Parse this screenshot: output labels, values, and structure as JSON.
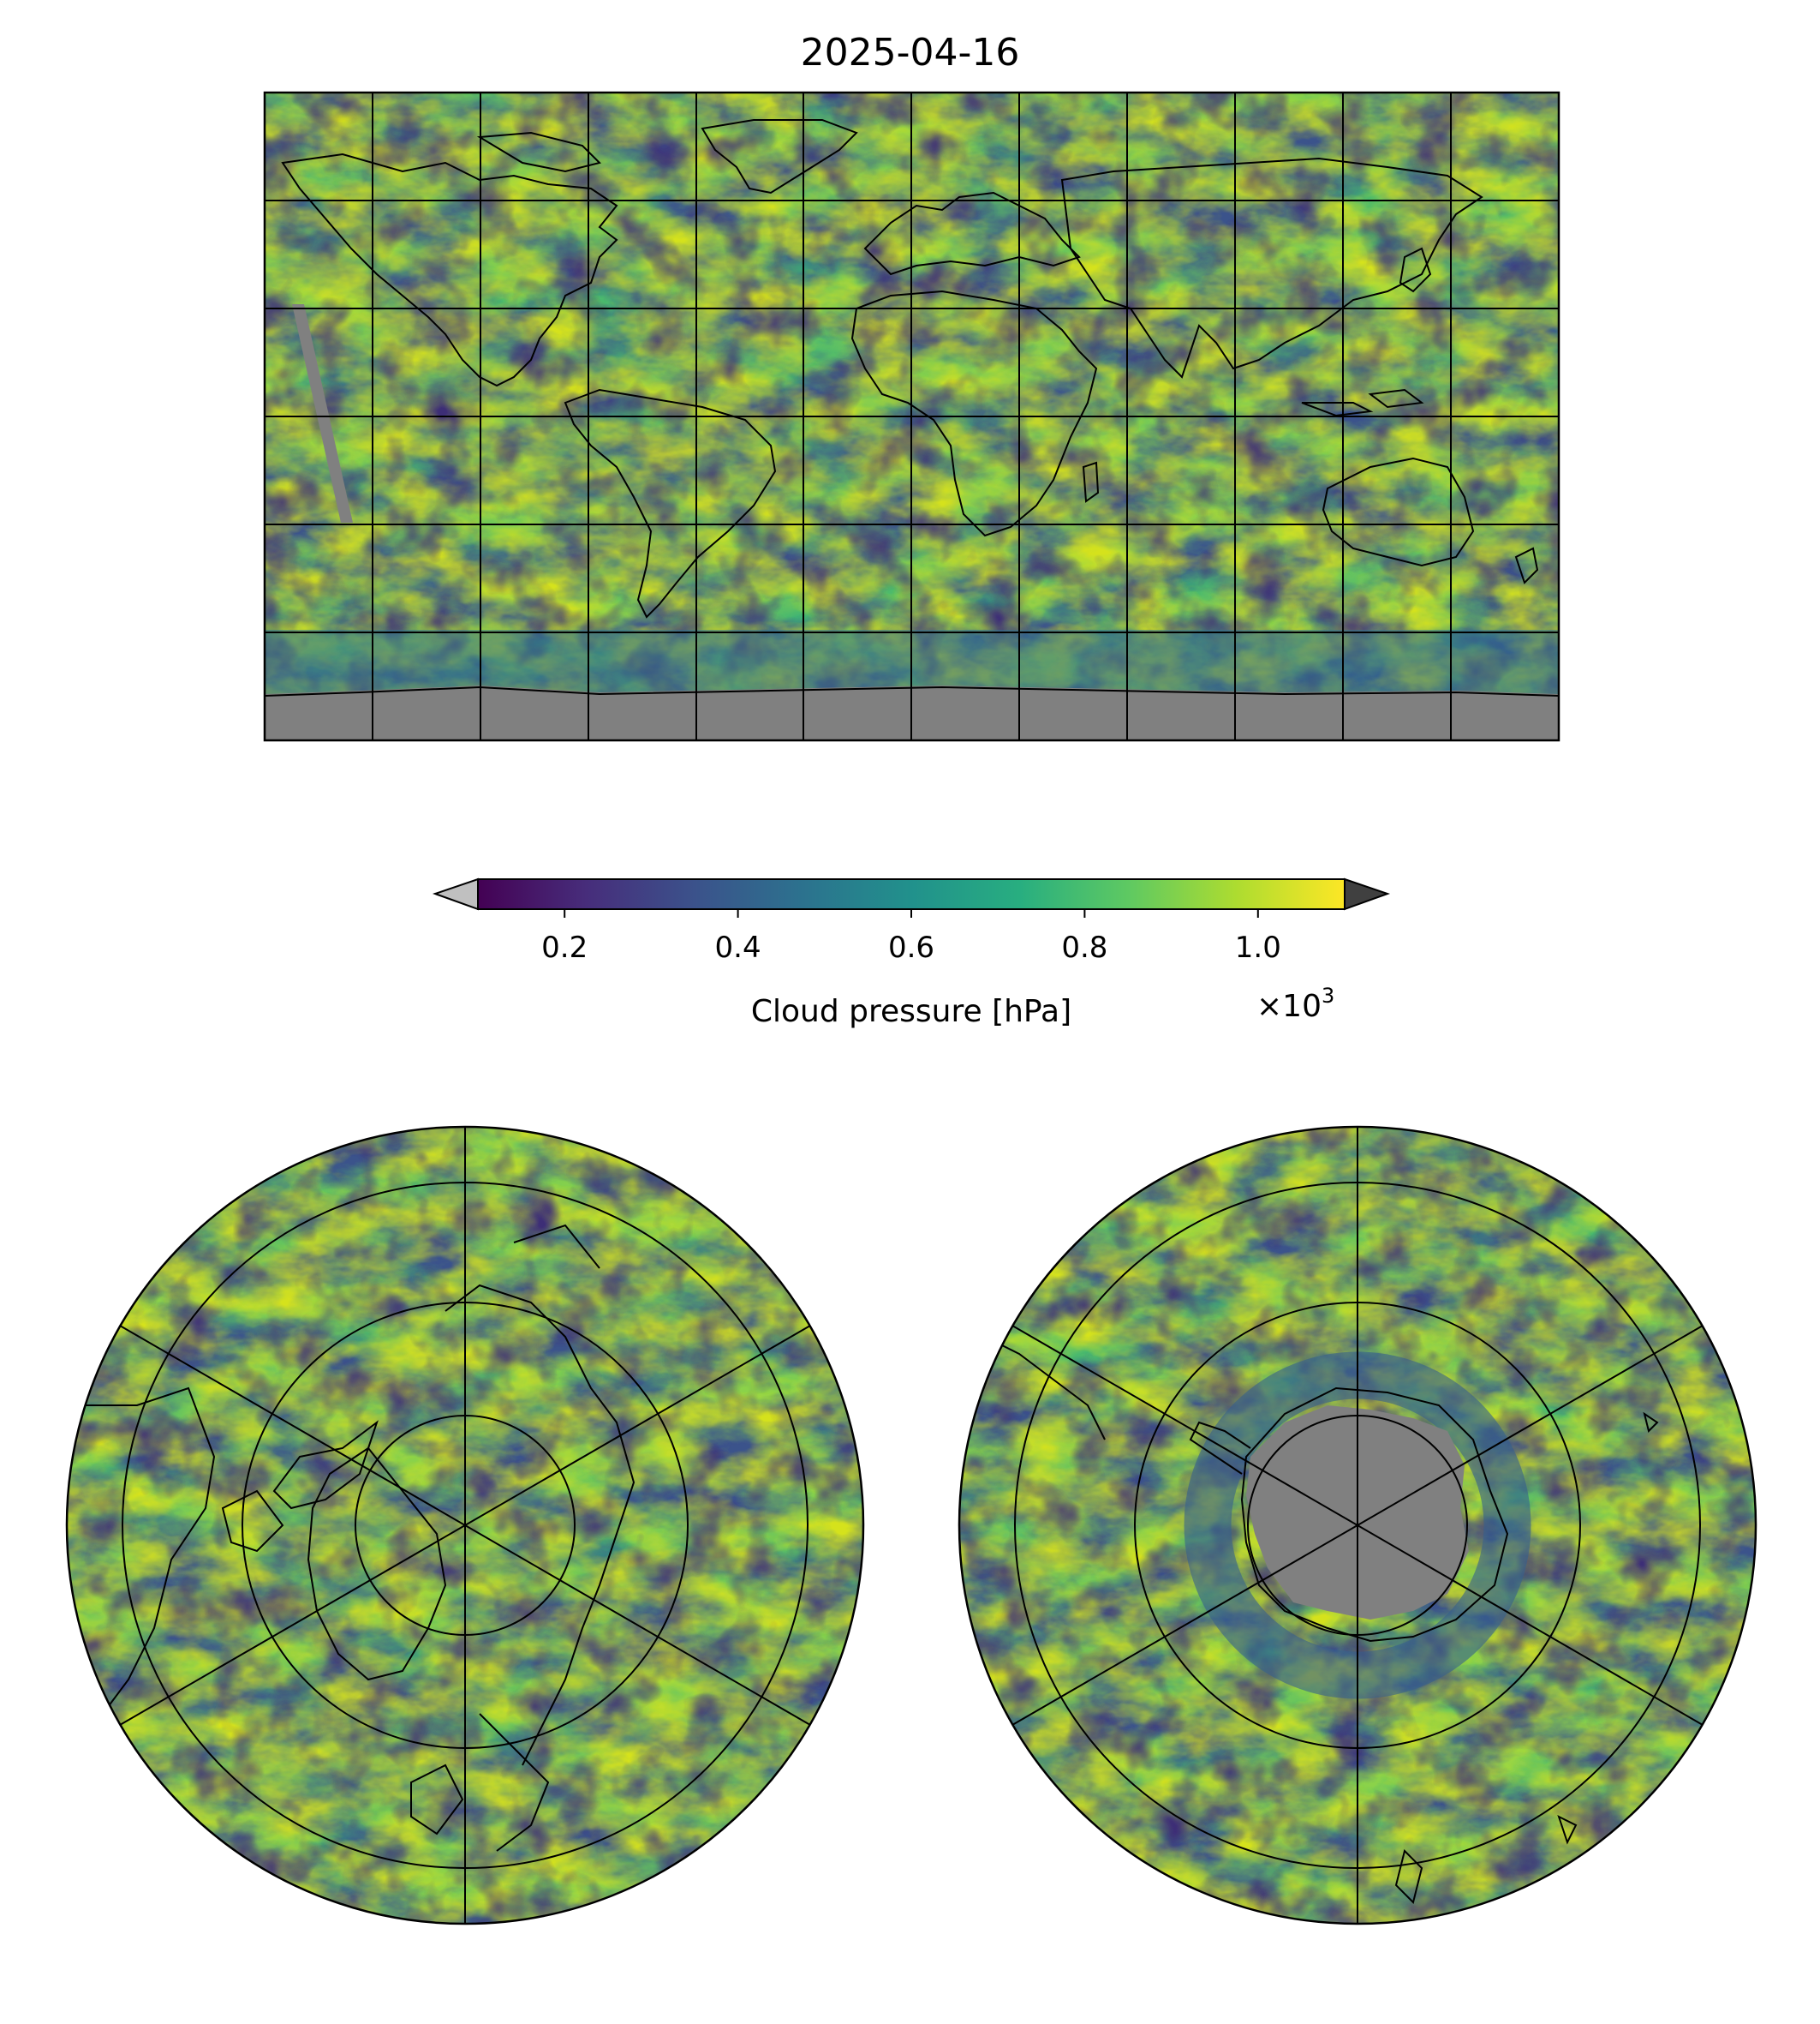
{
  "figure": {
    "title": "2025-04-16"
  },
  "colorbar": {
    "label": "Cloud pressure [hPa]",
    "ticks": [
      "0.2",
      "0.4",
      "0.6",
      "0.8",
      "1.0"
    ],
    "tick_values": [
      0.2,
      0.4,
      0.6,
      0.8,
      1.0
    ],
    "range": [
      0.1,
      1.1
    ],
    "multiplier_label": "×10",
    "multiplier_exponent": "3",
    "colormap": "viridis",
    "under_color": "#c0c0c0",
    "over_color": "#404040"
  },
  "maps": [
    {
      "name": "global",
      "projection": "plate-carree",
      "gridlines": true,
      "no_data_color": "#808080"
    },
    {
      "name": "north-polar",
      "projection": "north-polar-stereographic",
      "gridlines": true
    },
    {
      "name": "south-polar",
      "projection": "south-polar-stereographic",
      "gridlines": true,
      "no_data_color": "#808080"
    }
  ]
}
